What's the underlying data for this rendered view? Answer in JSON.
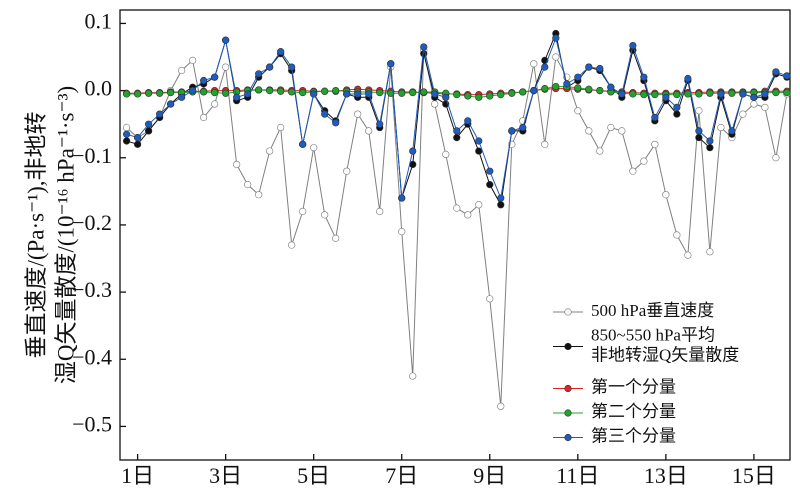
{
  "chart_data": {
    "type": "line",
    "ylabel": [
      "垂直速度/(Pa·s⁻¹),非地转",
      "湿Q矢量散度/(10⁻¹⁶ hPa⁻¹·s⁻³)"
    ],
    "x": [
      0.75,
      1,
      1.25,
      1.5,
      1.75,
      2,
      2.25,
      2.5,
      2.75,
      3,
      3.25,
      3.5,
      3.75,
      4,
      4.25,
      4.5,
      4.75,
      5,
      5.25,
      5.5,
      5.75,
      6,
      6.25,
      6.5,
      6.75,
      7,
      7.25,
      7.5,
      7.75,
      8,
      8.25,
      8.5,
      8.75,
      9,
      9.25,
      9.5,
      9.75,
      10,
      10.25,
      10.5,
      10.75,
      11,
      11.25,
      11.5,
      11.75,
      12,
      12.25,
      12.5,
      12.75,
      13,
      13.25,
      13.5,
      13.75,
      14,
      14.25,
      14.5,
      14.75,
      15,
      15.25,
      15.5,
      15.75
    ],
    "xlim": [
      0.6,
      15.82
    ],
    "xticks": [
      {
        "value": 1,
        "label": "1日"
      },
      {
        "value": 3,
        "label": "3日"
      },
      {
        "value": 5,
        "label": "5日"
      },
      {
        "value": 7,
        "label": "7日"
      },
      {
        "value": 9,
        "label": "9日"
      },
      {
        "value": 11,
        "label": "11日"
      },
      {
        "value": 13,
        "label": "13日"
      },
      {
        "value": 15,
        "label": "15日"
      }
    ],
    "ylim": [
      -0.55,
      0.12
    ],
    "yticks": [
      0.1,
      {
        "value": 0,
        "label": "0.0"
      },
      {
        "value": -0.1,
        "label": "−0.1"
      },
      {
        "value": -0.2,
        "label": "−0.2"
      },
      {
        "value": -0.3,
        "label": "−0.3"
      },
      {
        "value": -0.4,
        "label": "−0.4"
      },
      {
        "value": -0.5,
        "label": "−0.5"
      }
    ],
    "series": [
      {
        "name": "500 hPa垂直速度",
        "color": "#808080",
        "marker_fill": "#ffffff",
        "values": [
          -0.055,
          -0.07,
          -0.06,
          -0.04,
          0.0,
          0.03,
          0.045,
          -0.04,
          -0.02,
          0.035,
          -0.11,
          -0.14,
          -0.155,
          -0.09,
          -0.055,
          -0.23,
          -0.18,
          -0.085,
          -0.185,
          -0.22,
          -0.12,
          -0.035,
          -0.06,
          -0.18,
          0.035,
          -0.21,
          -0.425,
          0.06,
          -0.02,
          -0.095,
          -0.175,
          -0.185,
          -0.17,
          -0.31,
          -0.47,
          -0.08,
          -0.045,
          0.04,
          -0.08,
          0.05,
          0.02,
          -0.03,
          -0.06,
          -0.09,
          -0.055,
          -0.06,
          -0.12,
          -0.105,
          -0.08,
          -0.155,
          -0.215,
          -0.245,
          -0.03,
          -0.24,
          -0.055,
          -0.07,
          -0.035,
          -0.02,
          -0.025,
          -0.1,
          -0.005
        ]
      },
      {
        "name": "850~550 hPa平均\n非地转湿Q矢量散度",
        "color": "#111111",
        "marker_fill": "#111111",
        "values": [
          -0.075,
          -0.08,
          -0.06,
          -0.04,
          -0.02,
          -0.005,
          0.005,
          0.01,
          0.02,
          0.075,
          -0.015,
          -0.01,
          0.02,
          0.035,
          0.055,
          0.03,
          -0.08,
          -0.005,
          -0.03,
          -0.045,
          -0.005,
          -0.01,
          -0.01,
          -0.055,
          0.04,
          -0.16,
          -0.11,
          0.055,
          -0.01,
          -0.02,
          -0.07,
          -0.05,
          -0.09,
          -0.14,
          -0.17,
          -0.06,
          -0.06,
          0.0,
          0.045,
          0.085,
          0.005,
          0.015,
          0.035,
          0.03,
          0.005,
          -0.01,
          0.06,
          0.015,
          -0.045,
          -0.015,
          -0.035,
          0.015,
          -0.07,
          -0.085,
          -0.01,
          -0.065,
          -0.005,
          -0.01,
          -0.01,
          0.025,
          0.02
        ]
      },
      {
        "name": "第一个分量",
        "color": "#e02424",
        "marker_fill": "#e02424",
        "values": [
          -0.004,
          -0.004,
          -0.003,
          -0.003,
          -0.002,
          -0.002,
          -0.001,
          -0.001,
          0.0,
          0.0,
          0.0,
          0.001,
          0.001,
          0.001,
          0.001,
          0.0,
          0.0,
          -0.001,
          -0.001,
          -0.001,
          0.001,
          0.002,
          0.001,
          0.0,
          -0.001,
          -0.002,
          -0.002,
          -0.003,
          -0.004,
          -0.005,
          -0.005,
          -0.006,
          -0.006,
          -0.005,
          -0.004,
          -0.003,
          -0.002,
          0.0,
          0.002,
          0.003,
          0.003,
          0.002,
          0.001,
          0.0,
          -0.001,
          -0.002,
          -0.003,
          -0.004,
          -0.004,
          -0.004,
          -0.004,
          -0.003,
          -0.003,
          -0.002,
          -0.002,
          -0.002,
          -0.002,
          -0.002,
          -0.001,
          -0.001,
          -0.001
        ]
      },
      {
        "name": "第二个分量",
        "color": "#22a32e",
        "marker_fill": "#22a32e",
        "values": [
          -0.005,
          -0.005,
          -0.004,
          -0.004,
          -0.003,
          -0.003,
          -0.002,
          -0.002,
          -0.003,
          -0.004,
          -0.002,
          0.0,
          0.001,
          0.0,
          -0.001,
          -0.002,
          -0.003,
          -0.002,
          -0.001,
          0.0,
          -0.001,
          -0.002,
          -0.002,
          -0.003,
          -0.004,
          -0.004,
          -0.003,
          -0.002,
          -0.002,
          -0.004,
          -0.006,
          -0.008,
          -0.01,
          -0.008,
          -0.006,
          -0.004,
          -0.002,
          0.0,
          0.003,
          0.006,
          0.006,
          0.004,
          0.002,
          0.0,
          -0.002,
          -0.004,
          -0.005,
          -0.006,
          -0.006,
          -0.006,
          -0.006,
          -0.005,
          -0.005,
          -0.004,
          -0.004,
          -0.004,
          -0.003,
          -0.003,
          -0.003,
          -0.003,
          -0.003
        ]
      },
      {
        "name": "第三个分量",
        "color": "#1f5cc0",
        "marker_fill": "#1f5cc0",
        "values": [
          -0.065,
          -0.07,
          -0.05,
          -0.035,
          -0.02,
          -0.01,
          0.0,
          0.015,
          0.02,
          0.075,
          -0.01,
          -0.005,
          0.025,
          0.035,
          0.058,
          0.035,
          -0.08,
          -0.005,
          -0.035,
          -0.048,
          -0.005,
          -0.005,
          -0.005,
          -0.05,
          0.04,
          -0.16,
          -0.09,
          0.065,
          -0.005,
          -0.01,
          -0.06,
          -0.045,
          -0.075,
          -0.12,
          -0.16,
          -0.06,
          -0.055,
          0.0,
          0.035,
          0.078,
          0.01,
          0.02,
          0.035,
          0.033,
          0.005,
          -0.005,
          0.067,
          0.02,
          -0.04,
          -0.01,
          -0.025,
          0.018,
          -0.06,
          -0.075,
          -0.005,
          -0.06,
          -0.005,
          -0.01,
          -0.005,
          0.028,
          0.022
        ]
      }
    ],
    "legend": "lower right"
  }
}
